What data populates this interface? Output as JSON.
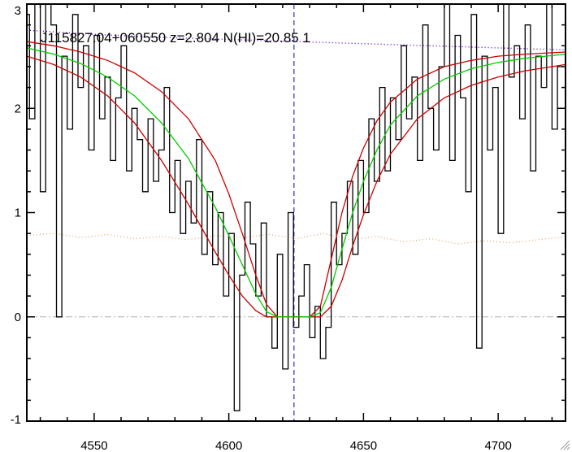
{
  "chart_data": {
    "type": "line",
    "title": "J115827.04+060550 z=2.804 N(HI)=20.85 1",
    "xlabel": "",
    "ylabel": "",
    "xlim": [
      4525,
      4725
    ],
    "ylim": [
      -1,
      3
    ],
    "x_ticks": [
      4550,
      4600,
      4650,
      4700
    ],
    "x_tick_labels": [
      "4550",
      "4600",
      "4650",
      "4700"
    ],
    "y_ticks": [
      -1,
      0,
      1,
      2,
      3
    ],
    "y_tick_labels": [
      "-1",
      "0",
      "1",
      "2",
      "3"
    ],
    "grid": false,
    "reference_lines": {
      "zero_level": 0,
      "line_center": 4624.2
    },
    "colors": {
      "flux": "#000000",
      "fit": "#00cc00",
      "fit_bounds": "#cc0000",
      "continuum": "#6600cc",
      "error": "#e0a060",
      "zero_line": "#b0b0b0",
      "center_line": "#0000cc"
    },
    "flux_series": {
      "name": "",
      "x": [
        4525,
        4527,
        4529,
        4531,
        4533,
        4535,
        4537,
        4539,
        4541,
        4543,
        4545,
        4547,
        4549,
        4551,
        4553,
        4555,
        4557,
        4559,
        4561,
        4563,
        4565,
        4567,
        4569,
        4571,
        4573,
        4575,
        4577,
        4579,
        4581,
        4583,
        4585,
        4587,
        4589,
        4591,
        4593,
        4595,
        4597,
        4599,
        4601,
        4603,
        4605,
        4607,
        4609,
        4611,
        4613,
        4615,
        4617,
        4619,
        4621,
        4623,
        4625,
        4627,
        4629,
        4631,
        4633,
        4635,
        4637,
        4639,
        4641,
        4643,
        4645,
        4647,
        4649,
        4651,
        4653,
        4655,
        4657,
        4659,
        4661,
        4663,
        4665,
        4667,
        4669,
        4671,
        4673,
        4675,
        4677,
        4679,
        4681,
        4683,
        4685,
        4687,
        4689,
        4691,
        4693,
        4695,
        4697,
        4699,
        4701,
        4703,
        4705,
        4707,
        4709,
        4711,
        4713,
        4715,
        4717,
        4719,
        4721,
        4723
      ],
      "y": [
        2.9,
        1.9,
        3.0,
        1.2,
        3.0,
        2.8,
        0.0,
        2.5,
        1.8,
        2.9,
        2.2,
        2.6,
        1.6,
        2.7,
        1.9,
        2.3,
        1.5,
        2.1,
        2.6,
        1.4,
        2.0,
        1.7,
        1.2,
        1.9,
        1.3,
        1.6,
        2.2,
        1.0,
        1.5,
        0.8,
        1.3,
        0.9,
        1.7,
        0.6,
        1.2,
        0.5,
        1.0,
        0.2,
        0.8,
        -0.9,
        0.4,
        1.1,
        0.7,
        0.2,
        0.9,
        0.0,
        -0.3,
        0.6,
        -0.5,
        1.0,
        -0.1,
        0.2,
        0.5,
        -0.2,
        0.1,
        -0.4,
        -0.1,
        1.1,
        0.5,
        0.8,
        1.3,
        0.6,
        1.5,
        1.0,
        1.9,
        1.3,
        2.2,
        1.4,
        2.1,
        1.7,
        2.6,
        1.9,
        2.3,
        1.5,
        2.8,
        2.0,
        1.6,
        2.4,
        3.0,
        1.5,
        2.7,
        2.1,
        1.2,
        2.9,
        -0.3,
        2.5,
        1.6,
        2.2,
        0.8,
        3.0,
        2.3,
        2.6,
        1.9,
        2.8,
        1.4,
        2.5,
        2.2,
        3.0,
        1.8,
        2.4
      ]
    },
    "fit_series": {
      "name": "",
      "x": [
        4525,
        4535,
        4545,
        4555,
        4565,
        4575,
        4585,
        4595,
        4600,
        4605,
        4610,
        4614,
        4618,
        4622,
        4626,
        4630,
        4634,
        4638,
        4642,
        4646,
        4650,
        4655,
        4660,
        4670,
        4680,
        4690,
        4700,
        4710,
        4725
      ],
      "y": [
        2.58,
        2.52,
        2.43,
        2.3,
        2.12,
        1.86,
        1.52,
        1.05,
        0.78,
        0.5,
        0.22,
        0.05,
        0.0,
        0.0,
        0.0,
        0.0,
        0.04,
        0.28,
        0.65,
        1.0,
        1.3,
        1.6,
        1.84,
        2.12,
        2.28,
        2.38,
        2.44,
        2.48,
        2.52
      ]
    },
    "fit_upper_series": {
      "name": "",
      "x": [
        4525,
        4535,
        4545,
        4555,
        4565,
        4575,
        4585,
        4595,
        4600,
        4605,
        4610,
        4614,
        4618,
        4622,
        4626,
        4630,
        4634,
        4638,
        4642,
        4646,
        4650,
        4655,
        4660,
        4670,
        4680,
        4690,
        4700,
        4710,
        4725
      ],
      "y": [
        2.64,
        2.6,
        2.54,
        2.46,
        2.34,
        2.16,
        1.9,
        1.5,
        1.18,
        0.8,
        0.4,
        0.12,
        0.0,
        0.0,
        0.0,
        0.0,
        0.1,
        0.55,
        1.0,
        1.35,
        1.62,
        1.88,
        2.06,
        2.28,
        2.4,
        2.46,
        2.5,
        2.52,
        2.54
      ]
    },
    "fit_lower_series": {
      "name": "",
      "x": [
        4525,
        4535,
        4545,
        4555,
        4565,
        4575,
        4585,
        4595,
        4600,
        4605,
        4610,
        4614,
        4618,
        4622,
        4626,
        4630,
        4634,
        4638,
        4642,
        4646,
        4650,
        4655,
        4660,
        4670,
        4680,
        4690,
        4700,
        4710,
        4725
      ],
      "y": [
        2.5,
        2.42,
        2.3,
        2.12,
        1.86,
        1.5,
        1.08,
        0.62,
        0.4,
        0.2,
        0.06,
        0.0,
        0.0,
        0.0,
        0.0,
        0.0,
        0.0,
        0.1,
        0.35,
        0.68,
        0.98,
        1.3,
        1.56,
        1.9,
        2.1,
        2.22,
        2.3,
        2.36,
        2.42
      ]
    },
    "continuum_series": {
      "name": "",
      "x": [
        4525,
        4550,
        4575,
        4600,
        4625,
        4650,
        4675,
        4700,
        4725
      ],
      "y": [
        2.75,
        2.71,
        2.68,
        2.66,
        2.64,
        2.62,
        2.6,
        2.58,
        2.56
      ]
    },
    "error_series": {
      "name": "",
      "x": [
        4525,
        4535,
        4545,
        4555,
        4565,
        4575,
        4585,
        4595,
        4605,
        4615,
        4625,
        4635,
        4645,
        4655,
        4665,
        4675,
        4685,
        4695,
        4705,
        4715,
        4725
      ],
      "y": [
        0.78,
        0.8,
        0.76,
        0.79,
        0.75,
        0.77,
        0.74,
        0.78,
        0.76,
        0.79,
        0.75,
        0.8,
        0.74,
        0.77,
        0.72,
        0.75,
        0.7,
        0.73,
        0.71,
        0.74,
        0.77
      ]
    }
  }
}
